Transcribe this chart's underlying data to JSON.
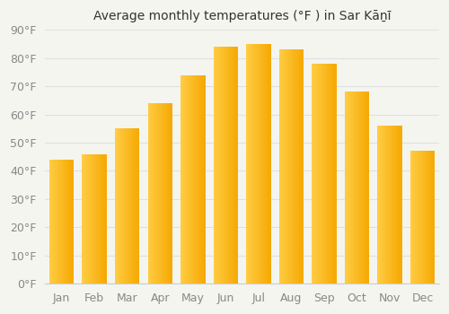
{
  "title": "Average monthly temperatures (°F ) in Sar Kāṉī",
  "months": [
    "Jan",
    "Feb",
    "Mar",
    "Apr",
    "May",
    "Jun",
    "Jul",
    "Aug",
    "Sep",
    "Oct",
    "Nov",
    "Dec"
  ],
  "values": [
    44,
    46,
    55,
    64,
    74,
    84,
    85,
    83,
    78,
    68,
    56,
    47
  ],
  "bar_color_left": "#FFCC44",
  "bar_color_right": "#F5A800",
  "ylim": [
    0,
    90
  ],
  "yticks": [
    0,
    10,
    20,
    30,
    40,
    50,
    60,
    70,
    80,
    90
  ],
  "ytick_labels": [
    "0°F",
    "10°F",
    "20°F",
    "30°F",
    "40°F",
    "50°F",
    "60°F",
    "70°F",
    "80°F",
    "90°F"
  ],
  "plot_bg_color": "#f5f5f0",
  "fig_bg_color": "#f5f5f0",
  "grid_color": "#e0e0e0",
  "title_fontsize": 10,
  "tick_fontsize": 9,
  "bar_width": 0.75
}
